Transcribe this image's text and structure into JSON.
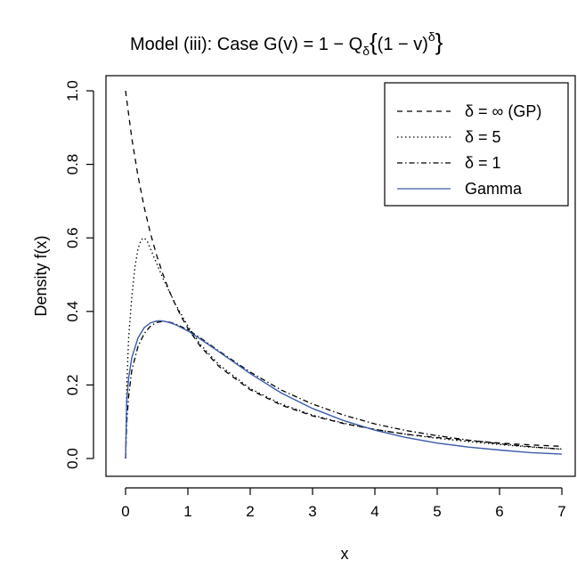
{
  "chart_data": {
    "type": "line",
    "title": {
      "main": "Model (iii): Case G(v) = 1 − Q",
      "subscript": "δ",
      "brace_open": "{",
      "paren_expr": "(1 − v)",
      "superscript": "δ",
      "brace_close": "}"
    },
    "xlabel": "x",
    "ylabel": "Density f(x)",
    "xlim": [
      0,
      7
    ],
    "ylim": [
      0,
      1.0
    ],
    "x_ticks": [
      "0",
      "1",
      "2",
      "3",
      "4",
      "5",
      "6",
      "7"
    ],
    "y_ticks": [
      "0.0",
      "0.2",
      "0.4",
      "0.6",
      "0.8",
      "1.0"
    ],
    "legend_position": "top-right",
    "grid": false,
    "series": [
      {
        "name": "δ = ∞ (GP)",
        "color": "#000000",
        "dash": "dashed",
        "x": [
          0,
          0.1,
          0.2,
          0.3,
          0.4,
          0.5,
          0.6,
          0.7,
          0.8,
          0.9,
          1.0,
          1.2,
          1.5,
          2.0,
          2.5,
          3.0,
          3.5,
          4.0,
          4.5,
          5.0,
          5.5,
          6.0,
          6.5,
          7.0
        ],
        "y": [
          1.0,
          0.871,
          0.768,
          0.683,
          0.612,
          0.552,
          0.501,
          0.456,
          0.418,
          0.384,
          0.354,
          0.305,
          0.25,
          0.187,
          0.145,
          0.116,
          0.095,
          0.079,
          0.066,
          0.057,
          0.049,
          0.042,
          0.037,
          0.033
        ]
      },
      {
        "name": "δ = 5",
        "color": "#000000",
        "dash": "dotted",
        "x": [
          0,
          0.02,
          0.05,
          0.1,
          0.15,
          0.2,
          0.25,
          0.3,
          0.35,
          0.4,
          0.5,
          0.6,
          0.7,
          0.8,
          1.0,
          1.2,
          1.5,
          2.0,
          2.5,
          3.0,
          3.5,
          4.0,
          4.5,
          5.0,
          5.5,
          6.0,
          6.5,
          7.0
        ],
        "y": [
          0.0,
          0.2,
          0.33,
          0.44,
          0.52,
          0.57,
          0.595,
          0.6,
          0.59,
          0.57,
          0.53,
          0.49,
          0.455,
          0.42,
          0.36,
          0.31,
          0.255,
          0.19,
          0.148,
          0.118,
          0.096,
          0.079,
          0.066,
          0.055,
          0.046,
          0.038,
          0.031,
          0.026
        ]
      },
      {
        "name": "δ = 1",
        "color": "#000000",
        "dash": "dashdot",
        "x": [
          0,
          0.02,
          0.05,
          0.1,
          0.2,
          0.3,
          0.4,
          0.5,
          0.6,
          0.7,
          0.8,
          1.0,
          1.2,
          1.5,
          2.0,
          2.5,
          3.0,
          3.5,
          4.0,
          4.5,
          5.0,
          5.5,
          6.0,
          6.5,
          7.0
        ],
        "y": [
          0.0,
          0.1,
          0.17,
          0.24,
          0.305,
          0.34,
          0.36,
          0.37,
          0.373,
          0.371,
          0.366,
          0.35,
          0.328,
          0.292,
          0.235,
          0.186,
          0.148,
          0.118,
          0.094,
          0.076,
          0.062,
          0.05,
          0.04,
          0.032,
          0.025
        ]
      },
      {
        "name": "Gamma",
        "color": "#3B5BA9",
        "dash": "solid",
        "x": [
          0,
          0.02,
          0.05,
          0.1,
          0.2,
          0.3,
          0.4,
          0.5,
          0.55,
          0.6,
          0.7,
          0.8,
          1.0,
          1.2,
          1.5,
          2.0,
          2.5,
          3.0,
          3.5,
          4.0,
          4.5,
          5.0,
          5.5,
          6.0,
          6.5,
          7.0
        ],
        "y": [
          0.0,
          0.16,
          0.22,
          0.274,
          0.328,
          0.356,
          0.369,
          0.374,
          0.3745,
          0.374,
          0.37,
          0.364,
          0.347,
          0.325,
          0.29,
          0.231,
          0.178,
          0.136,
          0.103,
          0.077,
          0.057,
          0.042,
          0.031,
          0.023,
          0.016,
          0.012
        ]
      }
    ]
  }
}
